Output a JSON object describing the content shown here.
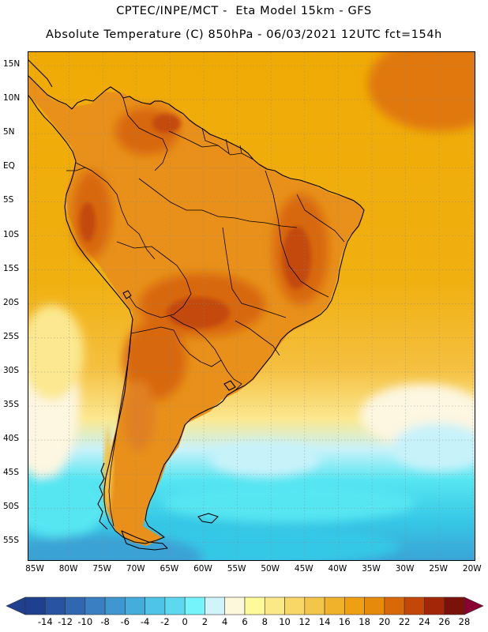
{
  "header": {
    "line1": "CPTEC/INPE/MCT -  Eta Model 15km - GFS",
    "line2": "Absolute Temperature (C) 850hPa - 06/03/2021 12UTC fct=154h"
  },
  "map": {
    "lat_labels": [
      "15N",
      "10N",
      "5N",
      "EQ",
      "5S",
      "10S",
      "15S",
      "20S",
      "25S",
      "30S",
      "35S",
      "40S",
      "45S",
      "50S",
      "55S"
    ],
    "lon_labels": [
      "85W",
      "80W",
      "75W",
      "70W",
      "65W",
      "60W",
      "55W",
      "50W",
      "45W",
      "40W",
      "35W",
      "30W",
      "25W",
      "20W"
    ],
    "colors": {
      "ocean_north": "#f0a800",
      "warm_land": "#e07810",
      "hot_core": "#c8500e",
      "mid_yellow": "#f5c040",
      "light_yellow": "#fbe890",
      "pale": "#fdf6e0",
      "light_cyan": "#c8f2fa",
      "cyan": "#56e6f2",
      "teal": "#36c8e6",
      "blue": "#3aa2d6",
      "coast": "#000000"
    }
  },
  "colorbar": {
    "labels": [
      "-14",
      "-12",
      "-10",
      "-8",
      "-6",
      "-4",
      "-2",
      "0",
      "2",
      "4",
      "6",
      "8",
      "10",
      "12",
      "14",
      "16",
      "18",
      "20",
      "22",
      "24",
      "26",
      "28"
    ],
    "colors": [
      "#1f3f8f",
      "#2753a1",
      "#2f67b1",
      "#3a7fc1",
      "#3f97cf",
      "#44addb",
      "#4ec4e6",
      "#5ed8ef",
      "#76f4fb",
      "#d0f4fa",
      "#fdf8dc",
      "#fefa9a",
      "#fbe988",
      "#f8d766",
      "#f2c648",
      "#efb22a",
      "#eea012",
      "#e58a0a",
      "#d86808",
      "#c34808",
      "#a42608",
      "#7b120a",
      "#8a0030"
    ]
  }
}
